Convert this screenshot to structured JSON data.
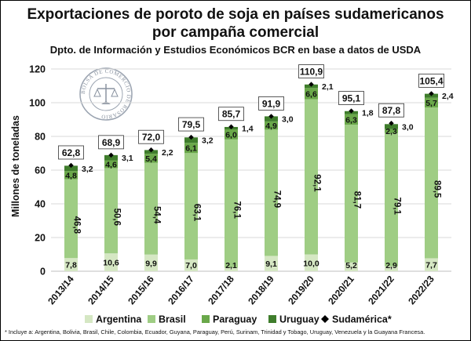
{
  "header": {
    "title_line1": "Exportaciones de poroto de soja en países sudamericanos",
    "title_line2": "por campaña comercial",
    "subtitle": "Dpto. de Información y Estudios Económicos BCR en base a datos de USDA"
  },
  "logo": {
    "text": "BOLSA DE COMERCIO DE ROSARIO"
  },
  "footnote": "* Incluye a: Argentina, Bolivia, Brasil, Chile, Colombia, Ecuador, Guyana, Paraguay, Perú, Surinam, Trinidad y Tobago, Uruguay, Venezuela y la Guayana Francesa.",
  "colors": {
    "Argentina": "#d5e7c3",
    "Brasil": "#9fcd84",
    "Paraguay": "#6aa84a",
    "Uruguay": "#3f7d2c",
    "Sudamérica": "#000000"
  },
  "chart_data": {
    "type": "bar",
    "stacked": true,
    "ylabel": "Millones de toneladas",
    "ylim": [
      0,
      120
    ],
    "yticks": [
      0,
      20,
      40,
      60,
      80,
      100,
      120
    ],
    "grid": true,
    "legend_position": "bottom",
    "categories": [
      "2013/14",
      "2014/15",
      "2015/16",
      "2016/17",
      "2017/18",
      "2018/19",
      "2019/20",
      "2020/21",
      "2021/22",
      "2022/23"
    ],
    "series": [
      {
        "name": "Argentina",
        "values": [
          7.8,
          10.6,
          9.9,
          7.0,
          2.1,
          9.1,
          10.0,
          5.2,
          2.9,
          7.7
        ],
        "labels": [
          "7,8",
          "10,6",
          "9,9",
          "7,0",
          "2,1",
          "9,1",
          "10,0",
          "5,2",
          "2,9",
          "7,7"
        ]
      },
      {
        "name": "Brasil",
        "values": [
          46.8,
          50.6,
          54.4,
          63.1,
          76.1,
          74.9,
          92.1,
          81.7,
          79.1,
          89.5
        ],
        "labels": [
          "46,8",
          "50,6",
          "54,4",
          "63,1",
          "76,1",
          "74,9",
          "92,1",
          "81,7",
          "79,1",
          "89,5"
        ]
      },
      {
        "name": "Paraguay",
        "values": [
          4.8,
          4.6,
          5.4,
          6.1,
          6.0,
          4.9,
          6.6,
          6.3,
          2.3,
          5.7
        ],
        "labels": [
          "4,8",
          "4,6",
          "5,4",
          "6,1",
          "6,0",
          "4,9",
          "6,6",
          "6,3",
          "2,3",
          "5,7"
        ]
      },
      {
        "name": "Uruguay",
        "values": [
          3.2,
          3.1,
          2.2,
          3.2,
          1.4,
          3.0,
          2.1,
          1.8,
          3.0,
          2.4
        ],
        "labels": [
          "3,2",
          "3,1",
          "2,2",
          "3,2",
          "1,4",
          "3,0",
          "2,1",
          "1,8",
          "3,0",
          "2,4"
        ]
      }
    ],
    "total": {
      "name": "Sudamérica*",
      "values": [
        62.8,
        68.9,
        72.0,
        79.5,
        85.7,
        91.9,
        110.9,
        95.1,
        87.8,
        105.4
      ],
      "labels": [
        "62,8",
        "68,9",
        "72,0",
        "79,5",
        "85,7",
        "91,9",
        "110,9",
        "95,1",
        "87,8",
        "105,4"
      ]
    }
  }
}
